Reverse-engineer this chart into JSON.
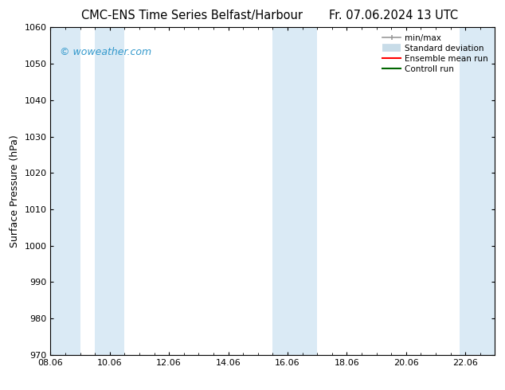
{
  "title_left": "CMC-ENS Time Series Belfast/Harbour",
  "title_right": "Fr. 07.06.2024 13 UTC",
  "ylabel": "Surface Pressure (hPa)",
  "ylim": [
    970,
    1060
  ],
  "yticks": [
    970,
    980,
    990,
    1000,
    1010,
    1020,
    1030,
    1040,
    1050,
    1060
  ],
  "x_tick_labels": [
    "08.06",
    "10.06",
    "12.06",
    "14.06",
    "16.06",
    "18.06",
    "20.06",
    "22.06"
  ],
  "x_tick_positions": [
    0,
    2,
    4,
    6,
    8,
    10,
    12,
    14
  ],
  "xlim": [
    0,
    15.0
  ],
  "shaded_bands": [
    {
      "x_start": 0.0,
      "x_end": 1.0
    },
    {
      "x_start": 1.5,
      "x_end": 2.5
    },
    {
      "x_start": 7.5,
      "x_end": 9.0
    },
    {
      "x_start": 13.8,
      "x_end": 15.0
    }
  ],
  "shaded_color": "#daeaf5",
  "watermark_text": "© woweather.com",
  "watermark_color": "#3399cc",
  "legend_items": [
    {
      "label": "min/max",
      "color": "#999999",
      "lw": 1.2
    },
    {
      "label": "Standard deviation",
      "color": "#c8dce8",
      "lw": 7
    },
    {
      "label": "Ensemble mean run",
      "color": "#ff0000",
      "lw": 1.5
    },
    {
      "label": "Controll run",
      "color": "#006600",
      "lw": 1.5
    }
  ],
  "bg_color": "#ffffff",
  "title_fontsize": 10.5,
  "label_fontsize": 9,
  "tick_fontsize": 8,
  "watermark_fontsize": 9,
  "legend_fontsize": 7.5
}
